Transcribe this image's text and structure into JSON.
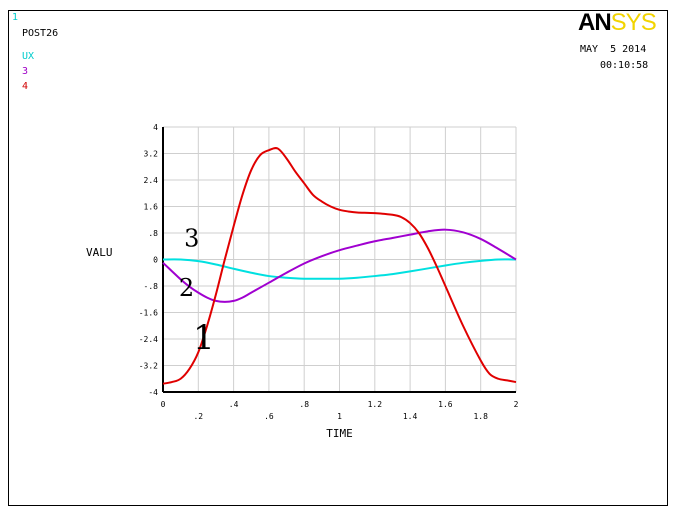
{
  "header": {
    "window_number": "1",
    "program": "POST26",
    "legend": [
      {
        "label": "UX",
        "color": "#00cccc"
      },
      {
        "label": "3",
        "color": "#a000c8"
      },
      {
        "label": "4",
        "color": "#d00000"
      }
    ],
    "date": "MAY  5 2014",
    "time": "00:10:58",
    "logo_part1": "AN",
    "logo_part2": "SYS"
  },
  "chart_data": {
    "type": "line",
    "title": "",
    "xlabel": "TIME",
    "ylabel": "VALU",
    "xlim": [
      0,
      2
    ],
    "ylim": [
      -4,
      4
    ],
    "grid": true,
    "xticks": [
      0,
      0.2,
      0.4,
      0.6,
      0.8,
      1.0,
      1.2,
      1.4,
      1.6,
      1.8,
      2.0
    ],
    "xtick_labels": [
      "0",
      ".2",
      ".4",
      ".6",
      ".8",
      "1",
      "1.2",
      "1.4",
      "1.6",
      "1.8",
      "2"
    ],
    "xtick_label_rows": [
      0,
      1,
      0,
      1,
      0,
      1,
      0,
      1,
      0,
      1,
      0
    ],
    "yticks": [
      -4,
      -3.2,
      -2.4,
      -1.6,
      -0.8,
      0,
      0.8,
      1.6,
      2.4,
      3.2,
      4
    ],
    "ytick_labels": [
      "-4",
      "-3.2",
      "-2.4",
      "-1.6",
      "-.8",
      "0",
      ".8",
      "1.6",
      "2.4",
      "3.2",
      "4"
    ],
    "series": [
      {
        "name": "UX",
        "color": "#00e0e0",
        "x": [
          0,
          0.1,
          0.2,
          0.3,
          0.4,
          0.5,
          0.6,
          0.7,
          0.8,
          0.9,
          1.0,
          1.1,
          1.2,
          1.3,
          1.4,
          1.5,
          1.6,
          1.7,
          1.8,
          1.9,
          2.0
        ],
        "y": [
          0,
          0,
          -0.05,
          -0.15,
          -0.28,
          -0.4,
          -0.5,
          -0.55,
          -0.58,
          -0.58,
          -0.58,
          -0.55,
          -0.5,
          -0.44,
          -0.36,
          -0.27,
          -0.18,
          -0.1,
          -0.04,
          0,
          0
        ]
      },
      {
        "name": "3",
        "color": "#a000d0",
        "x": [
          0,
          0.05,
          0.1,
          0.15,
          0.2,
          0.25,
          0.3,
          0.35,
          0.4,
          0.45,
          0.5,
          0.6,
          0.7,
          0.8,
          0.9,
          1.0,
          1.1,
          1.2,
          1.3,
          1.4,
          1.5,
          1.6,
          1.7,
          1.8,
          1.9,
          2.0
        ],
        "y": [
          -0.1,
          -0.35,
          -0.6,
          -0.82,
          -1.0,
          -1.15,
          -1.25,
          -1.28,
          -1.25,
          -1.15,
          -1.0,
          -0.7,
          -0.4,
          -0.12,
          0.1,
          0.28,
          0.42,
          0.55,
          0.65,
          0.75,
          0.85,
          0.9,
          0.82,
          0.62,
          0.32,
          0.0
        ]
      },
      {
        "name": "4",
        "color": "#e00000",
        "x": [
          0,
          0.05,
          0.1,
          0.15,
          0.2,
          0.25,
          0.3,
          0.35,
          0.4,
          0.45,
          0.5,
          0.55,
          0.6,
          0.65,
          0.7,
          0.75,
          0.8,
          0.85,
          0.9,
          0.95,
          1.0,
          1.05,
          1.1,
          1.2,
          1.3,
          1.35,
          1.4,
          1.45,
          1.5,
          1.55,
          1.6,
          1.7,
          1.8,
          1.85,
          1.9,
          1.95,
          2.0
        ],
        "y": [
          -3.75,
          -3.7,
          -3.6,
          -3.3,
          -2.8,
          -2.0,
          -1.05,
          0.0,
          1.0,
          1.95,
          2.7,
          3.15,
          3.3,
          3.35,
          3.05,
          2.65,
          2.3,
          1.95,
          1.75,
          1.6,
          1.5,
          1.45,
          1.42,
          1.4,
          1.35,
          1.28,
          1.1,
          0.8,
          0.35,
          -0.2,
          -0.8,
          -2.0,
          -3.05,
          -3.45,
          -3.6,
          -3.65,
          -3.7
        ]
      }
    ],
    "annotations": [
      {
        "text": "1",
        "x": 0.17,
        "y": -2.7
      },
      {
        "text": "2",
        "x": 0.09,
        "y": -1.1
      },
      {
        "text": "3",
        "x": 0.12,
        "y": 0.4
      }
    ]
  }
}
